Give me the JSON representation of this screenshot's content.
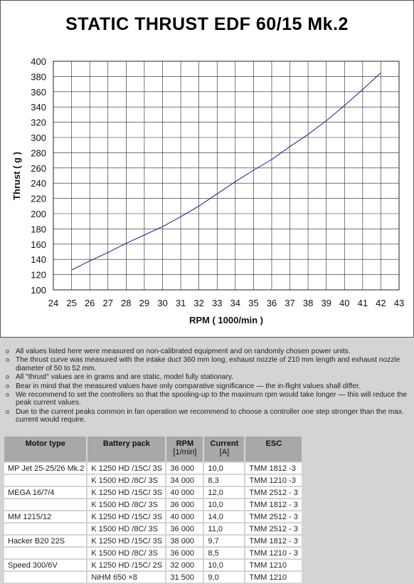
{
  "chart_data": {
    "type": "line",
    "title": "STATIC THRUST  EDF 60/15 Mk.2",
    "xlabel": "RPM ( 1000/min )",
    "ylabel": "Thrust ( g )",
    "xlim": [
      24,
      43
    ],
    "ylim": [
      100,
      400
    ],
    "x_ticks": [
      "24",
      "25",
      "26",
      "27",
      "28",
      "29",
      "30",
      "31",
      "32",
      "33",
      "34",
      "35",
      "36",
      "37",
      "38",
      "39",
      "40",
      "41",
      "42",
      "43"
    ],
    "y_ticks": [
      "100",
      "120",
      "140",
      "160",
      "180",
      "200",
      "220",
      "240",
      "260",
      "280",
      "300",
      "320",
      "340",
      "360",
      "380",
      "400"
    ],
    "grid": true,
    "series": [
      {
        "x": [
          25,
          26,
          27,
          28,
          29,
          30,
          31,
          32,
          33,
          34,
          35,
          36,
          37,
          38,
          39,
          40,
          41,
          42
        ],
        "y": [
          126,
          138,
          149,
          161,
          172,
          183,
          196,
          210,
          226,
          242,
          257,
          271,
          288,
          304,
          322,
          342,
          363,
          385
        ],
        "color": "#1a1a8c"
      }
    ]
  },
  "notes": [
    "All values listed here were measured on non-calibrated equipment and on randomly chosen power units.",
    "The thrust curve was measured with the intake duct 360 mm long, exhaust nozzle of 210 mm length and exhaust nozzle diameter of 50 to 52 mm.",
    "All \"thrust\" values are in grams and are static, model fully stationary.",
    "Bear in mind that the measured values have only comparative significance — the in-flight values shall differ.",
    "We recommend to set the controllers so that the spooling-up to the maximum rpm would take longer — this will reduce the peak current values.",
    "Due to the current peaks common in fan operation we recommend to choose a controller one step stronger than the max. current would require."
  ],
  "table": {
    "headers": {
      "motor": "Motor type",
      "battery": "Battery pack",
      "rpm": "RPM",
      "rpm_unit": "[1/min]",
      "current": "Current",
      "current_unit": "[A]",
      "esc": "ESC"
    },
    "rows": [
      {
        "motor": "MP Jet 25-25/26 Mk.2",
        "battery": "K 1250 HD /15C/ 3S",
        "rpm": "36 000",
        "current": "10,0",
        "esc": "TMM 1812 -3"
      },
      {
        "motor": "",
        "battery": "K 1500 HD /8C/ 3S",
        "rpm": "34 000",
        "current": "8,3",
        "esc": "TMM 1210 -3"
      },
      {
        "motor": "MEGA 16/7/4",
        "battery": "K 1250 HD /15C/ 3S",
        "rpm": "40 000",
        "current": "12,0",
        "esc": "TMM 2512 - 3"
      },
      {
        "motor": "",
        "battery": "K 1500 HD /8C/ 3S",
        "rpm": "36 000",
        "current": "10,0",
        "esc": "TMM 1812 - 3"
      },
      {
        "motor": "MM 1215/12",
        "battery": "K 1250 HD /15C/ 3S",
        "rpm": "40 000",
        "current": "14,0",
        "esc": "TMM 2512 - 3"
      },
      {
        "motor": "",
        "battery": "K 1500 HD /8C/ 3S",
        "rpm": "36 000",
        "current": "11,0",
        "esc": "TMM 2512 - 3"
      },
      {
        "motor": "Hacker B20 22S",
        "battery": "K 1250 HD /15C/ 3S",
        "rpm": "38 000",
        "current": "9,7",
        "esc": "TMM 1812 - 3"
      },
      {
        "motor": "",
        "battery": "K 1500 HD /8C/ 3S",
        "rpm": "36 000",
        "current": "8,5",
        "esc": "TMM 1210 - 3"
      },
      {
        "motor": "Speed 300/6V",
        "battery": "K 1250 HD /15C/ 2S",
        "rpm": "32 000",
        "current": "10,0",
        "esc": "TMM 1210"
      },
      {
        "motor": "",
        "battery": "NiHM 650 ×8",
        "rpm": "31 500",
        "current": "9,0",
        "esc": "TMM 1210"
      }
    ]
  }
}
